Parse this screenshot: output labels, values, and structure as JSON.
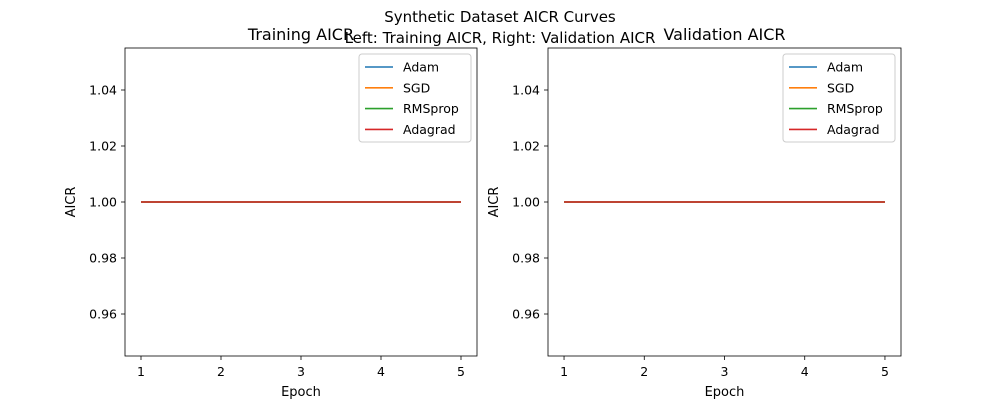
{
  "figure": {
    "title_line1": "Synthetic Dataset AICR Curves",
    "title_line2": "Left: Training AICR, Right: Validation AICR"
  },
  "chart_data": [
    {
      "type": "line",
      "title": "Training AICR",
      "xlabel": "Epoch",
      "ylabel": "AICR",
      "x": [
        1,
        2,
        3,
        4,
        5
      ],
      "xticks": [
        "1",
        "2",
        "3",
        "4",
        "5"
      ],
      "xlim": [
        0.8,
        5.2
      ],
      "yticks": [
        "0.96",
        "0.98",
        "1.00",
        "1.02",
        "1.04"
      ],
      "ytick_values": [
        0.96,
        0.98,
        1.0,
        1.02,
        1.04
      ],
      "ylim": [
        0.945,
        1.055
      ],
      "grid": false,
      "legend_position": "top-right",
      "series": [
        {
          "name": "Adam",
          "color": "#1f77b4",
          "values": [
            1.0,
            1.0,
            1.0,
            1.0,
            1.0
          ]
        },
        {
          "name": "SGD",
          "color": "#ff7f0e",
          "values": [
            1.0,
            1.0,
            1.0,
            1.0,
            1.0
          ]
        },
        {
          "name": "RMSprop",
          "color": "#2ca02c",
          "values": [
            1.0,
            1.0,
            1.0,
            1.0,
            1.0
          ]
        },
        {
          "name": "Adagrad",
          "color": "#d62728",
          "values": [
            1.0,
            1.0,
            1.0,
            1.0,
            1.0
          ]
        }
      ]
    },
    {
      "type": "line",
      "title": "Validation AICR",
      "xlabel": "Epoch",
      "ylabel": "AICR",
      "x": [
        1,
        2,
        3,
        4,
        5
      ],
      "xticks": [
        "1",
        "2",
        "3",
        "4",
        "5"
      ],
      "xlim": [
        0.8,
        5.2
      ],
      "yticks": [
        "0.96",
        "0.98",
        "1.00",
        "1.02",
        "1.04"
      ],
      "ytick_values": [
        0.96,
        0.98,
        1.0,
        1.02,
        1.04
      ],
      "ylim": [
        0.945,
        1.055
      ],
      "grid": false,
      "legend_position": "top-right",
      "series": [
        {
          "name": "Adam",
          "color": "#1f77b4",
          "values": [
            1.0,
            1.0,
            1.0,
            1.0,
            1.0
          ]
        },
        {
          "name": "SGD",
          "color": "#ff7f0e",
          "values": [
            1.0,
            1.0,
            1.0,
            1.0,
            1.0
          ]
        },
        {
          "name": "RMSprop",
          "color": "#2ca02c",
          "values": [
            1.0,
            1.0,
            1.0,
            1.0,
            1.0
          ]
        },
        {
          "name": "Adagrad",
          "color": "#d62728",
          "values": [
            1.0,
            1.0,
            1.0,
            1.0,
            1.0
          ]
        }
      ]
    }
  ]
}
